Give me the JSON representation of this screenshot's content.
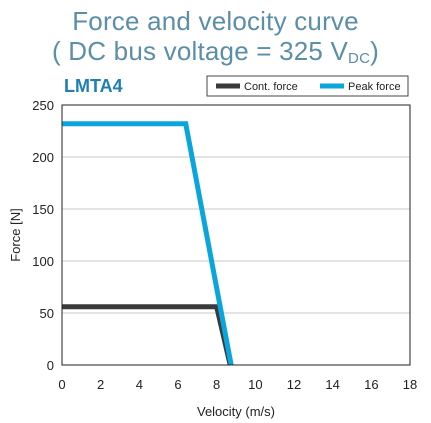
{
  "header": {
    "title_line1": "Force and velocity curve",
    "title_line2_prefix": "( DC bus voltage = 325 V",
    "title_line2_sub": "DC",
    "title_line2_suffix": ")"
  },
  "chart_data": {
    "type": "line",
    "title": "LMTA4",
    "xlabel": "Velocity (m/s)",
    "ylabel": "Force [N]",
    "xlim": [
      0,
      18
    ],
    "ylim": [
      0,
      250
    ],
    "xticks": [
      0,
      2,
      4,
      6,
      8,
      10,
      12,
      14,
      16,
      18
    ],
    "yticks": [
      0,
      50,
      100,
      150,
      200,
      250
    ],
    "grid": "horizontal",
    "legend_position": "top-right",
    "colors": {
      "cont": "#3a3a3a",
      "peak": "#0aa5dd"
    },
    "series": [
      {
        "name": "Cont. force",
        "color": "#3a3a3a",
        "x": [
          0,
          8.0,
          8.7
        ],
        "y": [
          56,
          56,
          0
        ]
      },
      {
        "name": "Peak force",
        "color": "#0aa5dd",
        "x": [
          0,
          6.4,
          8.75
        ],
        "y": [
          232,
          232,
          0
        ]
      }
    ]
  }
}
